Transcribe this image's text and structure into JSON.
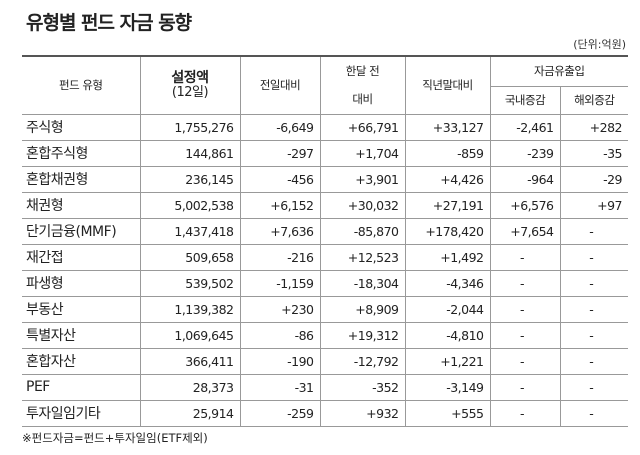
{
  "header": {
    "title": "유형별 펀드 자금 동향",
    "unit": "(단위:억원)"
  },
  "table": {
    "columns": {
      "fund_type": "펀드 유형",
      "amount": [
        "설정액",
        "(12일)"
      ],
      "day": "전일대비",
      "month": [
        "한달 전",
        "대비"
      ],
      "year": "직년말대비",
      "flow": "자금유출입",
      "domestic": "국내증감",
      "overseas": "해외증감"
    },
    "rows": [
      [
        "주식형",
        "1,755,276",
        "-6,649",
        "+66,791",
        "+33,127",
        "-2,461",
        "+282"
      ],
      [
        "혼합주식형",
        "144,861",
        "-297",
        "+1,704",
        "-859",
        "-239",
        "-35"
      ],
      [
        "혼합채권형",
        "236,145",
        "-456",
        "+3,901",
        "+4,426",
        "-964",
        "-29"
      ],
      [
        "채권형",
        "5,002,538",
        "+6,152",
        "+30,032",
        "+27,191",
        "+6,576",
        "+97"
      ],
      [
        "단기금융(MMF)",
        "1,437,418",
        "+7,636",
        "-85,870",
        "+178,420",
        "+7,654",
        "-"
      ],
      [
        "재간접",
        "509,658",
        "-216",
        "+12,523",
        "+1,492",
        "-",
        "-"
      ],
      [
        "파생형",
        "539,502",
        "-1,159",
        "-18,304",
        "-4,346",
        "-",
        "-"
      ],
      [
        "부동산",
        "1,139,382",
        "+230",
        "+8,909",
        "-2,044",
        "-",
        "-"
      ],
      [
        "특별자산",
        "1,069,645",
        "-86",
        "+19,312",
        "-4,810",
        "-",
        "-"
      ],
      [
        "혼합자산",
        "366,411",
        "-190",
        "-12,792",
        "+1,221",
        "-",
        "-"
      ],
      [
        "PEF",
        "28,373",
        "-31",
        "-352",
        "-3,149",
        "-",
        "-"
      ],
      [
        "투자일임기타",
        "25,914",
        "-259",
        "+932",
        "+555",
        "-",
        "-"
      ]
    ]
  },
  "footnote": "※펀드자금=펀드+투자일임(ETF제외)"
}
